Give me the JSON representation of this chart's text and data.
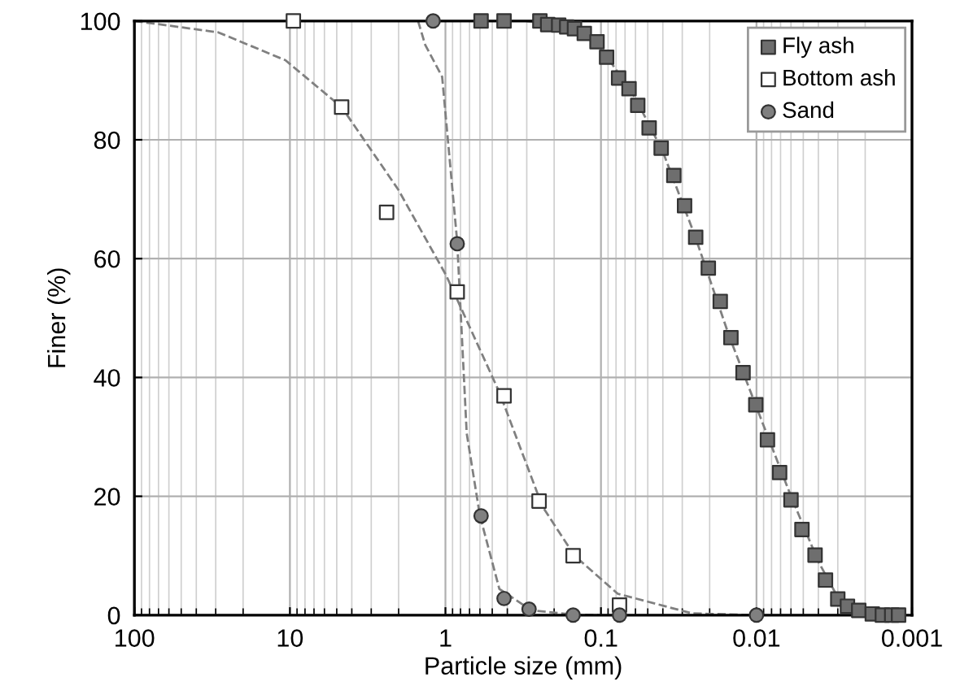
{
  "chart_data": {
    "type": "scatter",
    "xlabel": "Particle size (mm)",
    "ylabel": "Finer (%)",
    "log": "x",
    "xlim": [
      100,
      0.001
    ],
    "xticks": [
      100,
      10,
      1,
      0.1,
      0.01,
      0.001
    ],
    "ylim": [
      0,
      100
    ],
    "yticks": [
      0,
      20,
      40,
      60,
      80,
      100
    ],
    "grid": true,
    "legend": "top right",
    "series": [
      {
        "name": "Fly ash",
        "marker": "square",
        "color": "#6e6e6e",
        "x": [
          0.59,
          0.42,
          0.247,
          0.22,
          0.187,
          0.166,
          0.148,
          0.128,
          0.106,
          0.092,
          0.077,
          0.066,
          0.058,
          0.049,
          0.041,
          0.034,
          0.029,
          0.0246,
          0.0204,
          0.0171,
          0.0146,
          0.0122,
          0.0101,
          0.0085,
          0.0071,
          0.006,
          0.0051,
          0.0042,
          0.0036,
          0.003,
          0.0026,
          0.0022,
          0.0018,
          0.00155,
          0.00135,
          0.00122
        ],
        "values": [
          100,
          100,
          100,
          99.4,
          99.3,
          99,
          98.7,
          97.9,
          96.5,
          93.9,
          90.4,
          88.6,
          85.8,
          82,
          78.6,
          74,
          68.9,
          63.6,
          58.4,
          52.8,
          46.7,
          40.8,
          35.4,
          29.5,
          24,
          19.4,
          14.4,
          10.1,
          5.9,
          2.7,
          1.5,
          0.8,
          0.2,
          0,
          0,
          0
        ]
      },
      {
        "name": "Bottom ash",
        "marker": "square",
        "color": "#ffffff",
        "x": [
          9.5,
          4.65,
          2.39,
          0.84,
          0.42,
          0.25,
          0.151,
          0.076
        ],
        "values": [
          100,
          85.5,
          67.8,
          54.4,
          36.9,
          19.2,
          10,
          1.7
        ]
      },
      {
        "name": "Sand",
        "marker": "circle",
        "color": "#808080",
        "x": [
          1.2,
          0.84,
          0.59,
          0.42,
          0.29,
          0.151,
          0.076,
          0.01
        ],
        "values": [
          100,
          62.5,
          16.7,
          2.8,
          1,
          0,
          0,
          0
        ]
      },
      {
        "type": "line",
        "line_style": "dashed",
        "marker": "none",
        "color": "#808080",
        "x": [
          0.3,
          0.15,
          0.1,
          0.06,
          0.04,
          0.025,
          0.015,
          0.01,
          0.006,
          0.004,
          0.003,
          0.002,
          0.0015
        ],
        "values": [
          100,
          98.8,
          95.5,
          87,
          78,
          64,
          47,
          35,
          20,
          9,
          3,
          0.5,
          0
        ]
      },
      {
        "type": "line",
        "line_style": "dashed",
        "marker": "none",
        "color": "#808080",
        "x": [
          100,
          29,
          10.7,
          4.65,
          2.02,
          0.99,
          0.45,
          0.238,
          0.148,
          0.078,
          0.026,
          0.01
        ],
        "values": [
          100,
          98.1,
          93.4,
          85.5,
          71.7,
          57.2,
          37.5,
          18.3,
          10,
          3.6,
          0.3,
          0
        ]
      },
      {
        "type": "line",
        "line_style": "dashed",
        "marker": "none",
        "color": "#808080",
        "x": [
          1.5,
          1.35,
          1.05,
          0.84,
          0.73,
          0.6,
          0.45,
          0.28,
          0.15,
          0.1
        ],
        "values": [
          100,
          96,
          90.6,
          62.8,
          30.6,
          16.7,
          4.4,
          0.8,
          0.1,
          0
        ]
      }
    ]
  }
}
